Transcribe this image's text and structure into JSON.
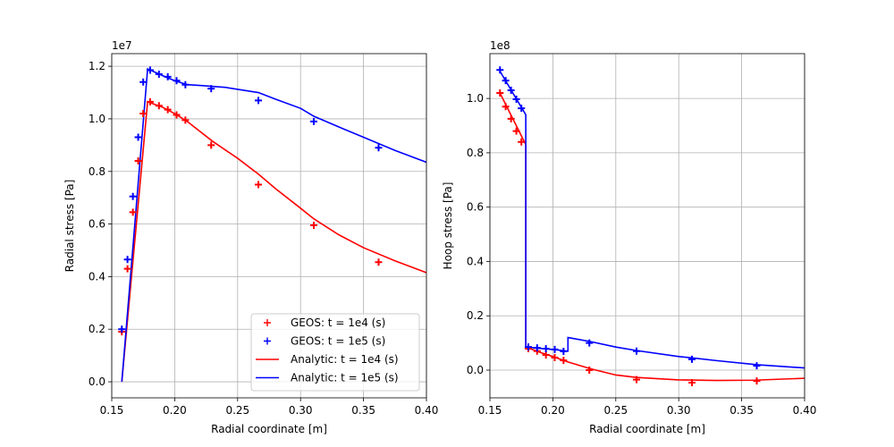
{
  "chart_data": [
    {
      "type": "line",
      "title": "",
      "xlabel": "Radial coordinate [m]",
      "ylabel": "Radial stress [Pa]",
      "offset_text": "1e7",
      "xlim": [
        0.15,
        0.4
      ],
      "ylim": [
        -0.061,
        1.248
      ],
      "xticks": [
        0.15,
        0.2,
        0.25,
        0.3,
        0.35,
        0.4
      ],
      "xtick_labels": [
        "0.15",
        "0.20",
        "0.25",
        "0.30",
        "0.35",
        "0.40"
      ],
      "yticks": [
        0.0,
        0.2,
        0.4,
        0.6,
        0.8,
        1.0,
        1.2
      ],
      "ytick_labels": [
        "0.0",
        "0.2",
        "0.4",
        "0.6",
        "0.8",
        "1.0",
        "1.2"
      ],
      "grid": true,
      "legend_position": "bottom-right",
      "series": [
        {
          "name": "GEOS: t = 1e4 (s)",
          "kind": "marker",
          "color": "#ff0000",
          "x": [
            0.158,
            0.1625,
            0.1668,
            0.171,
            0.175,
            0.1805,
            0.1875,
            0.1945,
            0.2015,
            0.2085,
            0.229,
            0.2665,
            0.3105,
            0.362
          ],
          "y": [
            0.19,
            0.43,
            0.645,
            0.84,
            1.02,
            1.065,
            1.05,
            1.035,
            1.015,
            0.995,
            0.9,
            0.75,
            0.595,
            0.455
          ]
        },
        {
          "name": "GEOS: t = 1e5 (s)",
          "kind": "marker",
          "color": "#0000ff",
          "x": [
            0.158,
            0.1625,
            0.1668,
            0.171,
            0.175,
            0.1805,
            0.1875,
            0.1945,
            0.2015,
            0.2085,
            0.229,
            0.2665,
            0.3105,
            0.362
          ],
          "y": [
            0.2,
            0.465,
            0.705,
            0.93,
            1.14,
            1.185,
            1.17,
            1.16,
            1.145,
            1.13,
            1.115,
            1.07,
            0.99,
            0.89
          ]
        },
        {
          "name": "Analytic: t = 1e4 (s)",
          "kind": "line",
          "color": "#ff0000",
          "x": [
            0.158,
            0.1785,
            0.19,
            0.2,
            0.21,
            0.23,
            0.25,
            0.2665,
            0.28,
            0.3,
            0.3105,
            0.33,
            0.35,
            0.375,
            0.4
          ],
          "y": [
            0.0,
            1.065,
            1.045,
            1.02,
            0.99,
            0.915,
            0.85,
            0.79,
            0.735,
            0.66,
            0.62,
            0.56,
            0.51,
            0.46,
            0.415
          ]
        },
        {
          "name": "Analytic: t = 1e5 (s)",
          "kind": "line",
          "color": "#0000ff",
          "x": [
            0.158,
            0.1785,
            0.19,
            0.2,
            0.21,
            0.22,
            0.24,
            0.2665,
            0.28,
            0.3,
            0.3105,
            0.33,
            0.35,
            0.375,
            0.4
          ],
          "y": [
            0.0,
            1.19,
            1.165,
            1.145,
            1.13,
            1.127,
            1.12,
            1.1,
            1.075,
            1.04,
            1.01,
            0.97,
            0.93,
            0.88,
            0.835
          ]
        }
      ]
    },
    {
      "type": "line",
      "title": "",
      "xlabel": "Radial coordinate [m]",
      "ylabel": "Hoop stress [Pa]",
      "offset_text": "1e8",
      "xlim": [
        0.15,
        0.4
      ],
      "ylim": [
        -0.102,
        1.165
      ],
      "xticks": [
        0.15,
        0.2,
        0.25,
        0.3,
        0.35,
        0.4
      ],
      "xtick_labels": [
        "0.15",
        "0.20",
        "0.25",
        "0.30",
        "0.35",
        "0.40"
      ],
      "yticks": [
        0.0,
        0.2,
        0.4,
        0.6,
        0.8,
        1.0
      ],
      "ytick_labels": [
        "0.0",
        "0.2",
        "0.4",
        "0.6",
        "0.8",
        "1.0"
      ],
      "grid": true,
      "series": [
        {
          "name": "GEOS: t = 1e4 (s)",
          "kind": "marker",
          "color": "#ff0000",
          "x": [
            0.158,
            0.1625,
            0.1668,
            0.171,
            0.175,
            0.1805,
            0.1875,
            0.1945,
            0.2015,
            0.2085,
            0.229,
            0.2665,
            0.3105,
            0.362
          ],
          "y": [
            1.02,
            0.97,
            0.925,
            0.88,
            0.84,
            0.079,
            0.07,
            0.056,
            0.046,
            0.036,
            0.0,
            -0.035,
            -0.046,
            -0.04
          ]
        },
        {
          "name": "GEOS: t = 1e5 (s)",
          "kind": "marker",
          "color": "#0000ff",
          "x": [
            0.158,
            0.1625,
            0.1668,
            0.171,
            0.175,
            0.1805,
            0.1875,
            0.1945,
            0.2015,
            0.2085,
            0.229,
            0.2665,
            0.3105,
            0.362
          ],
          "y": [
            1.105,
            1.066,
            1.03,
            0.997,
            0.964,
            0.085,
            0.082,
            0.079,
            0.076,
            0.069,
            0.1,
            0.07,
            0.04,
            0.016
          ]
        },
        {
          "name": "Analytic: t = 1e4 (s)",
          "kind": "line",
          "color": "#ff0000",
          "x": [
            0.158,
            0.1785,
            0.1785,
            0.19,
            0.2,
            0.212,
            0.23,
            0.25,
            0.2665,
            0.3,
            0.33,
            0.36,
            0.4
          ],
          "y": [
            1.02,
            0.83,
            0.085,
            0.065,
            0.05,
            0.03,
            0.005,
            -0.018,
            -0.027,
            -0.036,
            -0.038,
            -0.037,
            -0.03
          ]
        },
        {
          "name": "Analytic: t = 1e5 (s)",
          "kind": "line",
          "color": "#0000ff",
          "x": [
            0.158,
            0.1785,
            0.1785,
            0.19,
            0.2,
            0.212,
            0.212,
            0.23,
            0.25,
            0.2665,
            0.3,
            0.3105,
            0.33,
            0.362,
            0.4
          ],
          "y": [
            1.1,
            0.94,
            0.085,
            0.08,
            0.076,
            0.07,
            0.12,
            0.105,
            0.085,
            0.072,
            0.05,
            0.045,
            0.035,
            0.02,
            0.008
          ]
        }
      ]
    }
  ]
}
